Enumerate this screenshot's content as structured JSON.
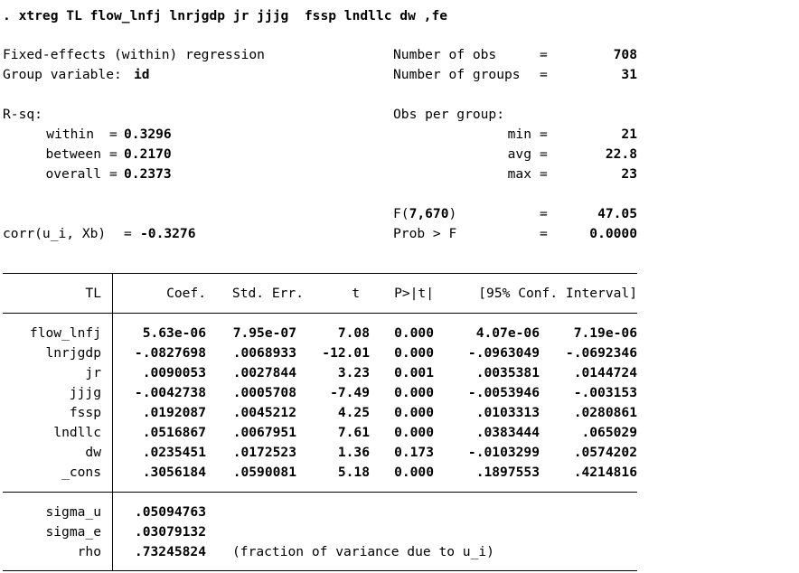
{
  "command": ". xtreg TL flow_lnfj lnrjgdp jr jjjg  fssp lndllc dw ,fe",
  "header": {
    "model": "Fixed-effects (within) regression",
    "group_var_label": "Group variable:",
    "group_var": "id",
    "nobs_label": "Number of obs",
    "nobs": "708",
    "ngroups_label": "Number of groups",
    "ngroups": "31",
    "eq": "=",
    "rsq_label": "R-sq:",
    "within_label": "within",
    "within": "0.3296",
    "between_label": "between",
    "between": "0.2170",
    "overall_label": "overall",
    "overall": "0.2373",
    "obs_per_group_label": "Obs per group:",
    "min_label": "min",
    "min": "21",
    "avg_label": "avg",
    "avg": "22.8",
    "max_label": "max",
    "max": "23",
    "f_label_prefix": "F(",
    "f_df": "7,670",
    "f_label_suffix": ")",
    "f_value": "47.05",
    "prob_label": "Prob > F",
    "prob_value": "0.0000",
    "corr_label": "corr(u_i, Xb)",
    "corr_value": "-0.3276"
  },
  "table": {
    "columns": {
      "var": "TL",
      "coef": "Coef.",
      "se": "Std. Err.",
      "t": "t",
      "p": "P>|t|",
      "ci": "[95% Conf. Interval]"
    },
    "rows": [
      {
        "var": "flow_lnfj",
        "coef": "5.63e-06",
        "se": "7.95e-07",
        "t": "7.08",
        "p": "0.000",
        "lo": "4.07e-06",
        "hi": "7.19e-06"
      },
      {
        "var": "lnrjgdp",
        "coef": "-.0827698",
        "se": ".0068933",
        "t": "-12.01",
        "p": "0.000",
        "lo": "-.0963049",
        "hi": "-.0692346"
      },
      {
        "var": "jr",
        "coef": ".0090053",
        "se": ".0027844",
        "t": "3.23",
        "p": "0.001",
        "lo": ".0035381",
        "hi": ".0144724"
      },
      {
        "var": "jjjg",
        "coef": "-.0042738",
        "se": ".0005708",
        "t": "-7.49",
        "p": "0.000",
        "lo": "-.0053946",
        "hi": "-.003153"
      },
      {
        "var": "fssp",
        "coef": ".0192087",
        "se": ".0045212",
        "t": "4.25",
        "p": "0.000",
        "lo": ".0103313",
        "hi": ".0280861"
      },
      {
        "var": "lndllc",
        "coef": ".0516867",
        "se": ".0067951",
        "t": "7.61",
        "p": "0.000",
        "lo": ".0383444",
        "hi": ".065029"
      },
      {
        "var": "dw",
        "coef": ".0235451",
        "se": ".0172523",
        "t": "1.36",
        "p": "0.173",
        "lo": "-.0103299",
        "hi": ".0574202"
      },
      {
        "var": "_cons",
        "coef": ".3056184",
        "se": ".0590081",
        "t": "5.18",
        "p": "0.000",
        "lo": ".1897553",
        "hi": ".4214816"
      }
    ],
    "sigma": [
      {
        "var": "sigma_u",
        "value": ".05094763"
      },
      {
        "var": "sigma_e",
        "value": ".03079132"
      },
      {
        "var": "rho",
        "value": ".73245824"
      }
    ],
    "rho_note": "(fraction of variance due to u_i)"
  }
}
